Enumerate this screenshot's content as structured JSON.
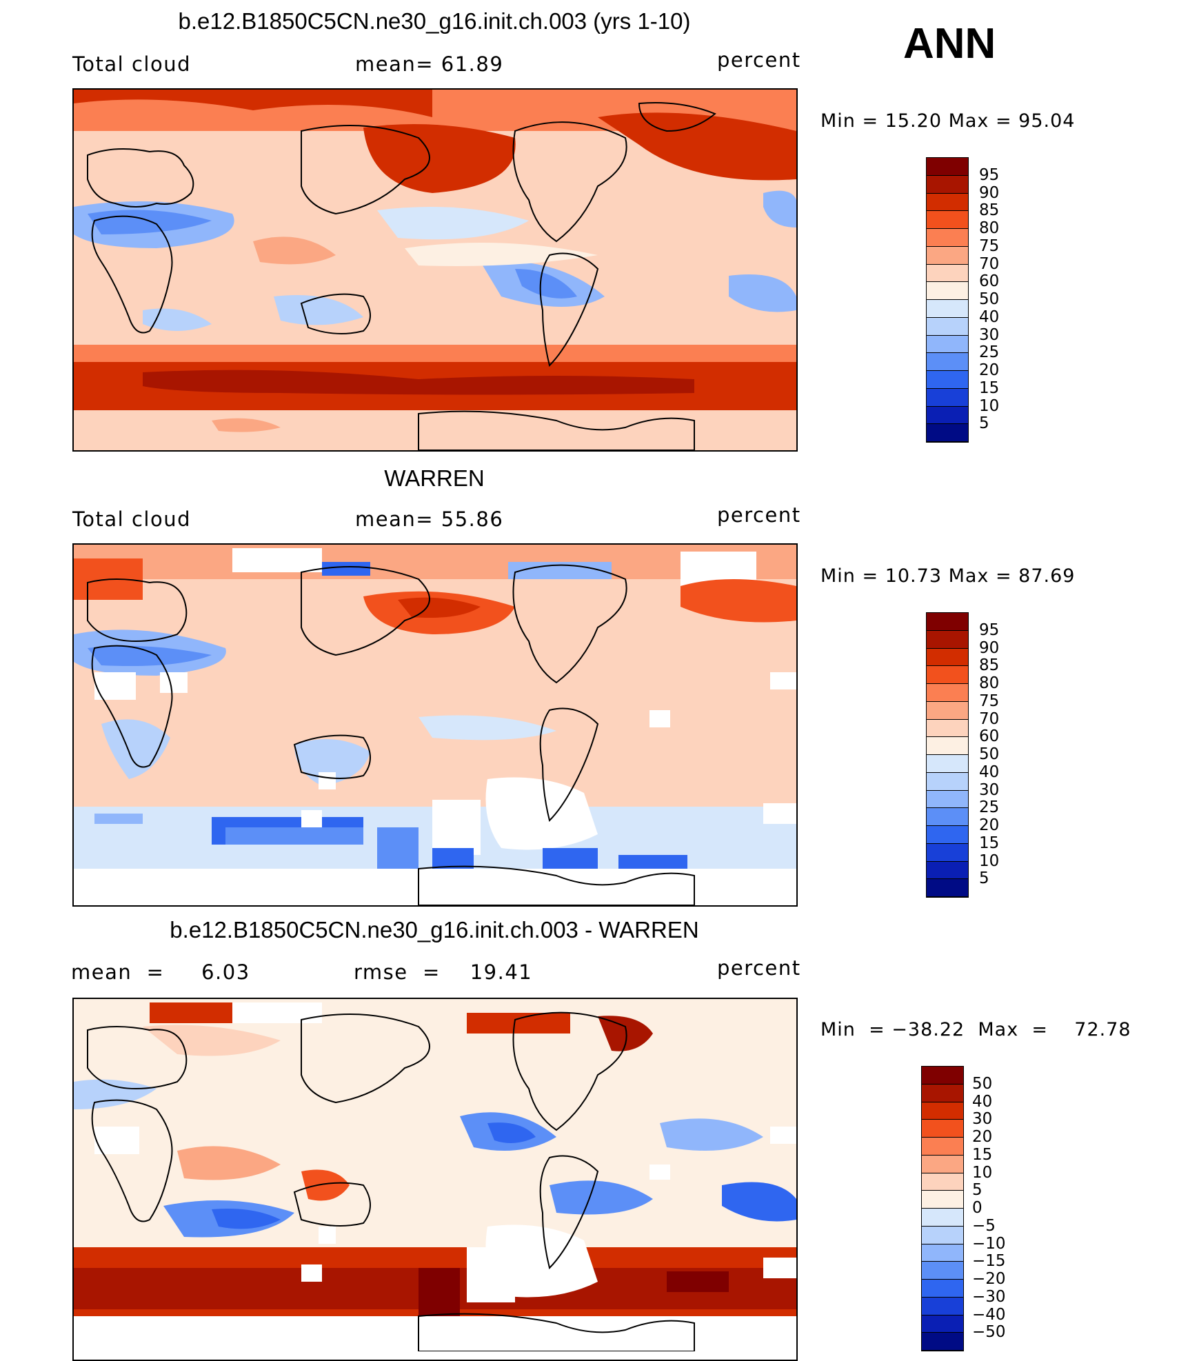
{
  "season": "ANN",
  "unit": "percent",
  "panels": [
    {
      "id": "model",
      "title": "b.e12.B1850C5CN.ne30_g16.init.ch.003 (yrs 1-10)",
      "left_label": "Total cloud",
      "center_label": "mean=   61.89",
      "right_label": "percent",
      "minmax": "Min  =   15.20  Max  =   95.04",
      "colorbar": {
        "colors": [
          "#7f0000",
          "#a81500",
          "#d22d00",
          "#f2511d",
          "#fb7f52",
          "#fba783",
          "#fdd3bd",
          "#fdf0e3",
          "#d6e7fb",
          "#b7d2fb",
          "#90b6fb",
          "#5c8ff7",
          "#2f66f0",
          "#1840d8",
          "#0a1fb4",
          "#000b85"
        ],
        "labels": [
          "95",
          "90",
          "85",
          "80",
          "75",
          "70",
          "60",
          "50",
          "40",
          "30",
          "25",
          "20",
          "15",
          "10",
          "5"
        ]
      }
    },
    {
      "id": "obs",
      "title": "WARREN",
      "left_label": "Total cloud",
      "center_label": "mean=   55.86",
      "right_label": "percent",
      "minmax": "Min  =   10.73  Max  =   87.69",
      "colorbar": {
        "colors": [
          "#7f0000",
          "#a81500",
          "#d22d00",
          "#f2511d",
          "#fb7f52",
          "#fba783",
          "#fdd3bd",
          "#fdf0e3",
          "#d6e7fb",
          "#b7d2fb",
          "#90b6fb",
          "#5c8ff7",
          "#2f66f0",
          "#1840d8",
          "#0a1fb4",
          "#000b85"
        ],
        "labels": [
          "95",
          "90",
          "85",
          "80",
          "75",
          "70",
          "60",
          "50",
          "40",
          "30",
          "25",
          "20",
          "15",
          "10",
          "5"
        ]
      }
    },
    {
      "id": "diff",
      "title": "b.e12.B1850C5CN.ne30_g16.init.ch.003 - WARREN",
      "left_label": "mean  =     6.03",
      "center_label": "rmse  =    19.41",
      "right_label": "percent",
      "minmax": "Min  = −38.22  Max  =    72.78",
      "colorbar": {
        "colors": [
          "#7f0000",
          "#a81500",
          "#d22d00",
          "#f2511d",
          "#fb7f52",
          "#fba783",
          "#fdd3bd",
          "#fdf0e3",
          "#d6e7fb",
          "#b7d2fb",
          "#90b6fb",
          "#5c8ff7",
          "#2f66f0",
          "#1840d8",
          "#0a1fb4",
          "#000b85"
        ],
        "labels": [
          "50",
          "40",
          "30",
          "20",
          "15",
          "10",
          "5",
          "0",
          "−5",
          "−10",
          "−15",
          "−20",
          "−30",
          "−40",
          "−50"
        ]
      }
    }
  ]
}
